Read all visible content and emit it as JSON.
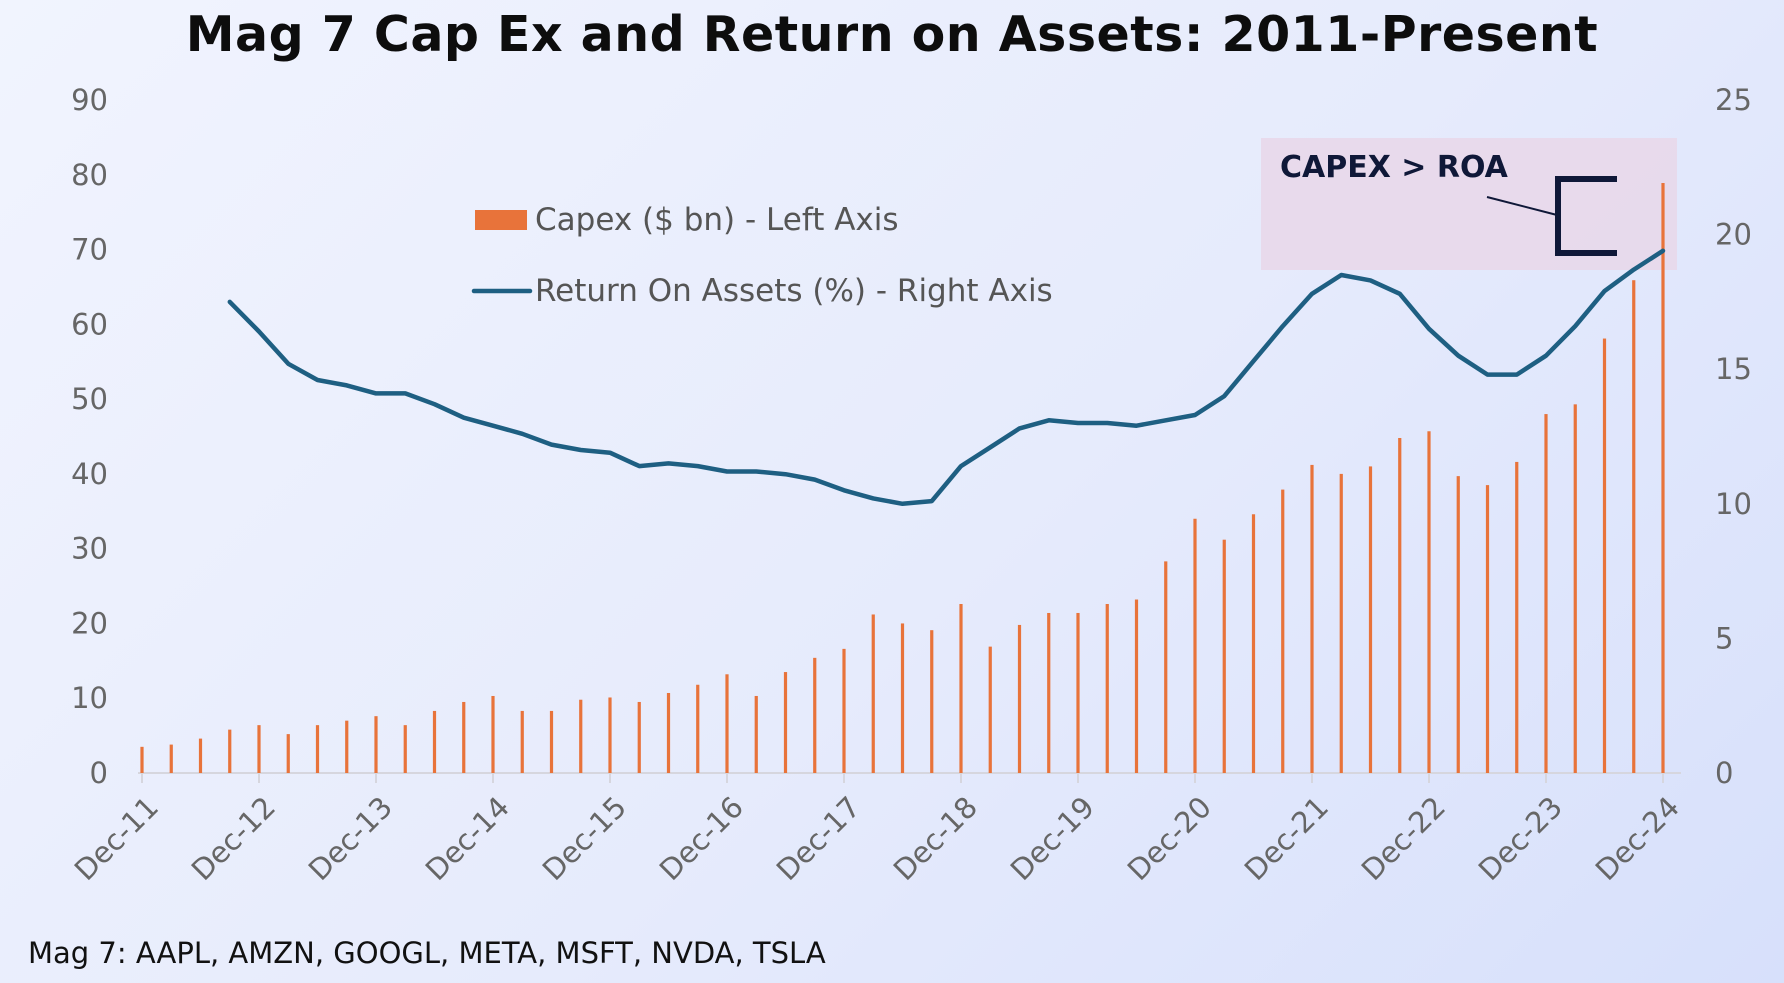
{
  "footnote": "Mag 7: AAPL, AMZN, GOOGL, META, MSFT, NVDA, TSLA",
  "colors": {
    "capex": "#e8733a",
    "roa": "#1e5f82",
    "annotation_box": "#e8d8ea",
    "annotation_ink": "#0f1838"
  },
  "chart_data": {
    "type": "bar",
    "title": "Mag 7 Cap Ex and Return on Assets: 2011-Present",
    "xlabel": "",
    "ylabel": "",
    "x_tick_labels": [
      "Dec-11",
      "Dec-12",
      "Dec-13",
      "Dec-14",
      "Dec-15",
      "Dec-16",
      "Dec-17",
      "Dec-18",
      "Dec-19",
      "Dec-20",
      "Dec-21",
      "Dec-22",
      "Dec-23",
      "Dec-24"
    ],
    "ylim_left": [
      0,
      90
    ],
    "yticks_left": [
      0,
      10,
      20,
      30,
      40,
      50,
      60,
      70,
      80,
      90
    ],
    "ylim_right": [
      0,
      25
    ],
    "yticks_right": [
      0,
      5,
      10,
      15,
      20,
      25
    ],
    "legend_placement": "top-center",
    "grid": false,
    "series": [
      {
        "name": "Capex ($ bn) - Left Axis",
        "type": "bar",
        "axis": "left",
        "values": [
          3.5,
          3.8,
          4.6,
          5.8,
          6.4,
          5.2,
          6.4,
          7.0,
          7.6,
          6.4,
          8.3,
          9.5,
          10.3,
          8.3,
          8.3,
          9.8,
          10.1,
          9.5,
          10.7,
          11.8,
          13.2,
          10.3,
          13.5,
          15.4,
          16.6,
          21.2,
          20.0,
          19.1,
          22.6,
          16.9,
          19.8,
          21.4,
          21.4,
          22.6,
          23.2,
          28.3,
          34.0,
          31.2,
          34.6,
          37.9,
          41.2,
          40.0,
          41.0,
          44.8,
          45.7,
          39.7,
          38.5,
          41.6,
          48.0,
          49.3,
          58.1,
          65.9,
          78.9
        ]
      },
      {
        "name": "Return On Assets (%) - Right Axis",
        "type": "line",
        "axis": "right",
        "values": [
          null,
          null,
          null,
          17.5,
          16.4,
          15.2,
          14.6,
          14.4,
          14.1,
          14.1,
          13.7,
          13.2,
          12.9,
          12.6,
          12.2,
          12.0,
          11.9,
          11.4,
          11.5,
          11.4,
          11.2,
          11.2,
          11.1,
          10.9,
          10.5,
          10.2,
          10.0,
          10.1,
          11.4,
          12.1,
          12.8,
          13.1,
          13.0,
          13.0,
          12.9,
          13.1,
          13.3,
          14.0,
          15.3,
          16.6,
          17.8,
          18.5,
          18.3,
          17.8,
          16.5,
          15.5,
          14.8,
          14.8,
          15.5,
          16.6,
          17.9,
          18.7,
          19.4
        ]
      }
    ],
    "annotation": {
      "text": "CAPEX > ROA"
    }
  }
}
